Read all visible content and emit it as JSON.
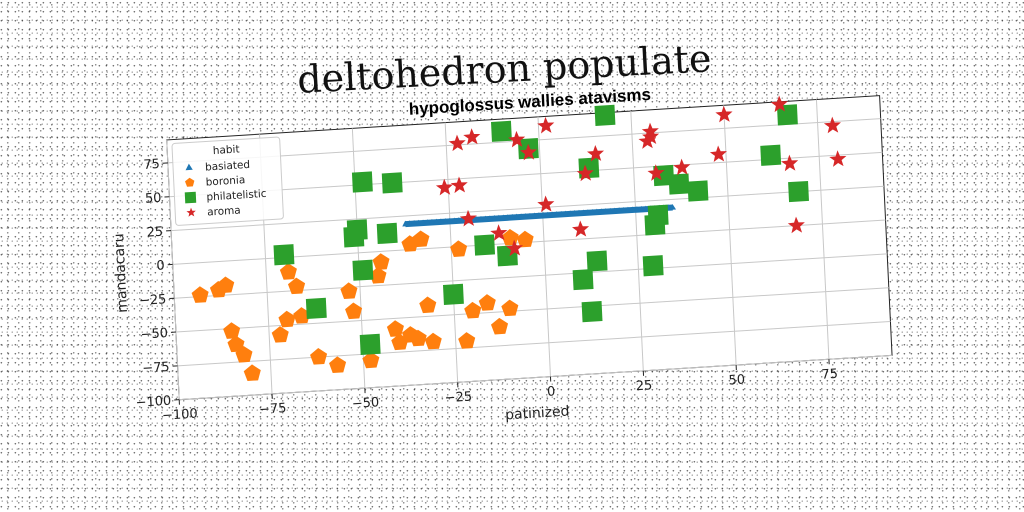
{
  "title": "deltohedron populate",
  "chart_data": {
    "type": "scatter",
    "title": "hypoglossus wallies atavisms",
    "xlabel": "patinized",
    "ylabel": "mandacaru",
    "xlim": [
      -100,
      92
    ],
    "ylim": [
      -100,
      92
    ],
    "xticks": [
      -100,
      -75,
      -50,
      -25,
      0,
      25,
      50,
      75
    ],
    "yticks": [
      -100,
      -75,
      -50,
      -25,
      0,
      25,
      50,
      75
    ],
    "xtick_labels": [
      "−100",
      "−75",
      "−50",
      "−25",
      "0",
      "25",
      "50",
      "75"
    ],
    "ytick_labels": [
      "−100",
      "−75",
      "−50",
      "−25",
      "0",
      "25",
      "50",
      "75"
    ],
    "grid": true,
    "legend": {
      "title": "habit",
      "position": "top-left"
    },
    "series": [
      {
        "name": "basiated",
        "marker": "triangle",
        "color": "#1f77b4",
        "line": {
          "x_start": -37,
          "x_end": 35,
          "y_start": 19,
          "y_end": 19
        }
      },
      {
        "name": "boronia",
        "marker": "pentagon",
        "color": "#ff7f0e",
        "points": [
          [
            -93,
            -24
          ],
          [
            -88,
            -21
          ],
          [
            -86,
            -18
          ],
          [
            -85,
            -52
          ],
          [
            -84,
            -62
          ],
          [
            -82,
            -70
          ],
          [
            -80,
            -84
          ],
          [
            -72,
            -57
          ],
          [
            -70,
            -46
          ],
          [
            -69,
            -11
          ],
          [
            -67,
            -22
          ],
          [
            -66,
            -44
          ],
          [
            -62,
            -75
          ],
          [
            -57,
            -82
          ],
          [
            -53,
            -28
          ],
          [
            -52,
            -43
          ],
          [
            -48,
            -80
          ],
          [
            -45,
            -18
          ],
          [
            -44,
            -8
          ],
          [
            -41,
            -58
          ],
          [
            -40,
            -68
          ],
          [
            -37,
            -63
          ],
          [
            -36,
            4
          ],
          [
            -35,
            -66
          ],
          [
            -33,
            7
          ],
          [
            -32,
            -42
          ],
          [
            -31,
            -69
          ],
          [
            -23,
            -2
          ],
          [
            -22,
            -70
          ],
          [
            -20,
            -48
          ],
          [
            -16,
            -43
          ],
          [
            -13,
            -61
          ],
          [
            -10,
            -48
          ],
          [
            -9,
            4
          ],
          [
            -5,
            2
          ]
        ]
      },
      {
        "name": "philatelistic",
        "marker": "square",
        "color": "#2ca02c",
        "points": [
          [
            -70,
            2
          ],
          [
            -62,
            -39
          ],
          [
            -51,
            12
          ],
          [
            -50,
            17
          ],
          [
            -49,
            -13
          ],
          [
            -48,
            -68
          ],
          [
            -48,
            52
          ],
          [
            -42,
            13
          ],
          [
            -40,
            50
          ],
          [
            -25,
            -35
          ],
          [
            -16,
            0
          ],
          [
            -10,
            -9
          ],
          [
            -10,
            83
          ],
          [
            -3,
            69
          ],
          [
            10,
            -30
          ],
          [
            12,
            -54
          ],
          [
            13,
            52
          ],
          [
            14,
            -17
          ],
          [
            18,
            90
          ],
          [
            29,
            -23
          ],
          [
            30,
            7
          ],
          [
            31,
            14
          ],
          [
            33,
            43
          ],
          [
            37,
            36
          ],
          [
            42,
            30
          ],
          [
            62,
            53
          ],
          [
            67,
            82
          ],
          [
            69,
            25
          ]
        ]
      },
      {
        "name": "aroma",
        "marker": "star",
        "color": "#d62728",
        "points": [
          [
            -26,
            44
          ],
          [
            -22,
            76
          ],
          [
            -22,
            45
          ],
          [
            -20,
            20
          ],
          [
            -18,
            80
          ],
          [
            -12,
            8
          ],
          [
            -8,
            -4
          ],
          [
            -6,
            76
          ],
          [
            -3,
            66
          ],
          [
            1,
            27
          ],
          [
            2,
            85
          ],
          [
            10,
            7
          ],
          [
            12,
            48
          ],
          [
            15,
            62
          ],
          [
            29,
            69
          ],
          [
            30,
            72
          ],
          [
            30,
            76
          ],
          [
            31,
            45
          ],
          [
            38,
            48
          ],
          [
            48,
            56
          ],
          [
            50,
            85
          ],
          [
            65,
            90
          ],
          [
            67,
            46
          ],
          [
            68,
            0
          ],
          [
            79,
            72
          ],
          [
            80,
            47
          ]
        ]
      }
    ]
  }
}
